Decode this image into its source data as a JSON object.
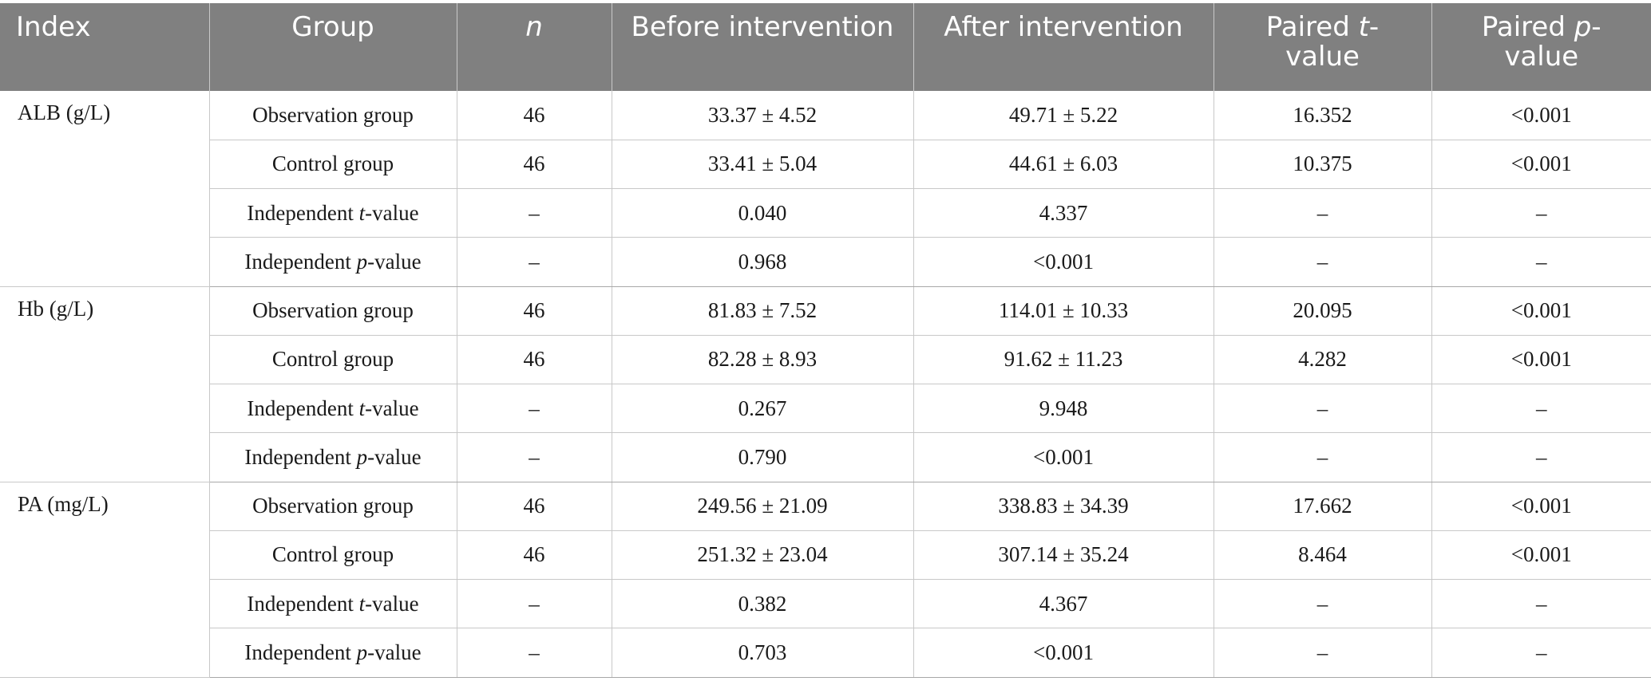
{
  "header": {
    "index": "Index",
    "group": "Group",
    "n": "n",
    "before": "Before intervention",
    "after": "After intervention",
    "paired_t_prefix": "Paired ",
    "paired_t_italic": "t",
    "paired_t_suffix": "-value",
    "paired_p_prefix": "Paired ",
    "paired_p_italic": "p",
    "paired_p_suffix": "-value"
  },
  "labels": {
    "independent": "Independent ",
    "t": "t",
    "p": "p",
    "value_suffix": "-value"
  },
  "blocks": [
    {
      "index": "ALB (g/L)",
      "rows": [
        {
          "group": "Observation group",
          "n": "46",
          "before": "33.37 ± 4.52",
          "after": "49.71 ± 5.22",
          "paired_t": "16.352",
          "paired_p": "<0.001"
        },
        {
          "group": "Control group",
          "n": "46",
          "before": "33.41 ± 5.04",
          "after": "44.61 ± 6.03",
          "paired_t": "10.375",
          "paired_p": "<0.001"
        },
        {
          "n": "–",
          "before": "0.040",
          "after": "4.337",
          "paired_t": "–",
          "paired_p": "–"
        },
        {
          "n": "–",
          "before": "0.968",
          "after": "<0.001",
          "paired_t": "–",
          "paired_p": "–"
        }
      ]
    },
    {
      "index": "Hb (g/L)",
      "rows": [
        {
          "group": "Observation group",
          "n": "46",
          "before": "81.83 ± 7.52",
          "after": "114.01 ± 10.33",
          "paired_t": "20.095",
          "paired_p": "<0.001"
        },
        {
          "group": "Control group",
          "n": "46",
          "before": "82.28 ± 8.93",
          "after": "91.62 ± 11.23",
          "paired_t": "4.282",
          "paired_p": "<0.001"
        },
        {
          "n": "–",
          "before": "0.267",
          "after": "9.948",
          "paired_t": "–",
          "paired_p": "–"
        },
        {
          "n": "–",
          "before": "0.790",
          "after": "<0.001",
          "paired_t": "–",
          "paired_p": "–"
        }
      ]
    },
    {
      "index": "PA (mg/L)",
      "rows": [
        {
          "group": "Observation group",
          "n": "46",
          "before": "249.56 ± 21.09",
          "after": "338.83 ± 34.39",
          "paired_t": "17.662",
          "paired_p": "<0.001"
        },
        {
          "group": "Control group",
          "n": "46",
          "before": "251.32 ± 23.04",
          "after": "307.14 ± 35.24",
          "paired_t": "8.464",
          "paired_p": "<0.001"
        },
        {
          "n": "–",
          "before": "0.382",
          "after": "4.367",
          "paired_t": "–",
          "paired_p": "–"
        },
        {
          "n": "–",
          "before": "0.703",
          "after": "<0.001",
          "paired_t": "–",
          "paired_p": "–"
        }
      ]
    }
  ],
  "colors": {
    "header_bg": "#808080",
    "header_text": "#ffffff",
    "grid_line": "#c8c8c8"
  }
}
